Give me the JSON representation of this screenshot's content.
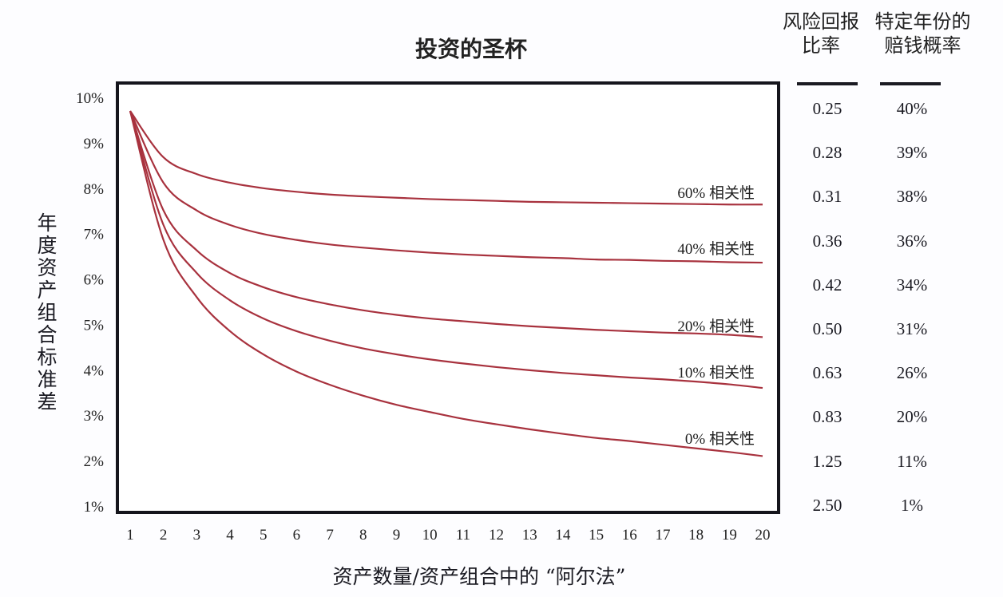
{
  "chart_data": {
    "type": "line",
    "title": "投资的圣杯",
    "xlabel": "资产数量/资产组合中的 “阿尔法”",
    "ylabel": "年度资产组合标准差",
    "x": [
      1,
      2,
      3,
      4,
      5,
      6,
      7,
      8,
      9,
      10,
      11,
      12,
      13,
      14,
      15,
      16,
      17,
      18,
      19,
      20
    ],
    "xlim": [
      1,
      20
    ],
    "ylim": [
      1,
      10
    ],
    "y_ticks": [
      "1%",
      "2%",
      "3%",
      "4%",
      "5%",
      "6%",
      "7%",
      "8%",
      "9%",
      "10%"
    ],
    "x_ticks": [
      "1",
      "2",
      "3",
      "4",
      "5",
      "6",
      "7",
      "8",
      "9",
      "10",
      "11",
      "12",
      "13",
      "14",
      "15",
      "16",
      "17",
      "18",
      "19",
      "20"
    ],
    "grid": false,
    "line_color": "#a8323e",
    "series": [
      {
        "name": "60% 相关性",
        "values": [
          9.7,
          8.68,
          8.31,
          8.12,
          8.0,
          7.92,
          7.86,
          7.82,
          7.79,
          7.76,
          7.74,
          7.72,
          7.7,
          7.69,
          7.68,
          7.67,
          7.66,
          7.65,
          7.64,
          7.64
        ]
      },
      {
        "name": "40% 相关性",
        "values": [
          9.7,
          8.12,
          7.51,
          7.19,
          6.99,
          6.86,
          6.76,
          6.69,
          6.63,
          6.58,
          6.54,
          6.51,
          6.48,
          6.46,
          6.43,
          6.42,
          6.4,
          6.39,
          6.37,
          6.36
        ]
      },
      {
        "name": "20% 相关性",
        "values": [
          9.7,
          7.51,
          6.63,
          6.13,
          5.82,
          5.6,
          5.44,
          5.31,
          5.21,
          5.13,
          5.07,
          5.01,
          4.96,
          4.92,
          4.88,
          4.85,
          4.82,
          4.8,
          4.77,
          4.72
        ]
      },
      {
        "name": "10% 相关性",
        "values": [
          9.7,
          7.19,
          6.13,
          5.53,
          5.13,
          4.85,
          4.64,
          4.47,
          4.34,
          4.23,
          4.14,
          4.06,
          3.99,
          3.93,
          3.88,
          3.83,
          3.79,
          3.74,
          3.68,
          3.6
        ]
      },
      {
        "name": "0% 相关性",
        "values": [
          9.7,
          6.86,
          5.6,
          4.85,
          4.34,
          3.96,
          3.67,
          3.43,
          3.23,
          3.07,
          2.92,
          2.8,
          2.69,
          2.59,
          2.5,
          2.43,
          2.35,
          2.27,
          2.19,
          2.1
        ]
      }
    ],
    "table": {
      "headers": [
        "风险回报比率",
        "特定年份的赔钱概率"
      ],
      "header_lines": [
        [
          "风险回报",
          "比率"
        ],
        [
          "特定年份的",
          "赔钱概率"
        ]
      ],
      "rows": [
        [
          "0.25",
          "40%"
        ],
        [
          "0.28",
          "39%"
        ],
        [
          "0.31",
          "38%"
        ],
        [
          "0.36",
          "36%"
        ],
        [
          "0.42",
          "34%"
        ],
        [
          "0.50",
          "31%"
        ],
        [
          "0.63",
          "26%"
        ],
        [
          "0.83",
          "20%"
        ],
        [
          "1.25",
          "11%"
        ],
        [
          "2.50",
          "1%"
        ]
      ]
    }
  }
}
